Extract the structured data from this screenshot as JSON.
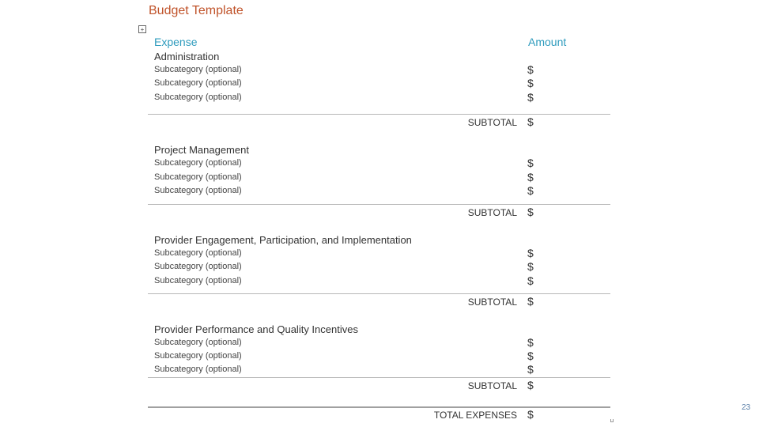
{
  "title": "Budget Template",
  "table_handle_icon": "move-handle-icon",
  "headers": {
    "expense": "Expense",
    "amount": "Amount"
  },
  "currency_symbol": "$",
  "subtotal_label": "SUBTOTAL",
  "total_label": "TOTAL EXPENSES",
  "categories": [
    {
      "name": "Administration",
      "subcategories": [
        "Subcategory (optional)",
        "Subcategory (optional)",
        "Subcategory (optional)"
      ]
    },
    {
      "name": "Project Management",
      "subcategories": [
        "Subcategory (optional)",
        "Subcategory (optional)",
        "Subcategory (optional)"
      ]
    },
    {
      "name": "Provider Engagement, Participation, and Implementation",
      "subcategories": [
        "Subcategory (optional)",
        "Subcategory (optional)",
        "Subcategory (optional)"
      ]
    },
    {
      "name": "Provider Performance and Quality Incentives",
      "subcategories": [
        "Subcategory (optional)",
        "Subcategory (optional)",
        "Subcategory (optional)"
      ]
    }
  ],
  "page_number": "23"
}
